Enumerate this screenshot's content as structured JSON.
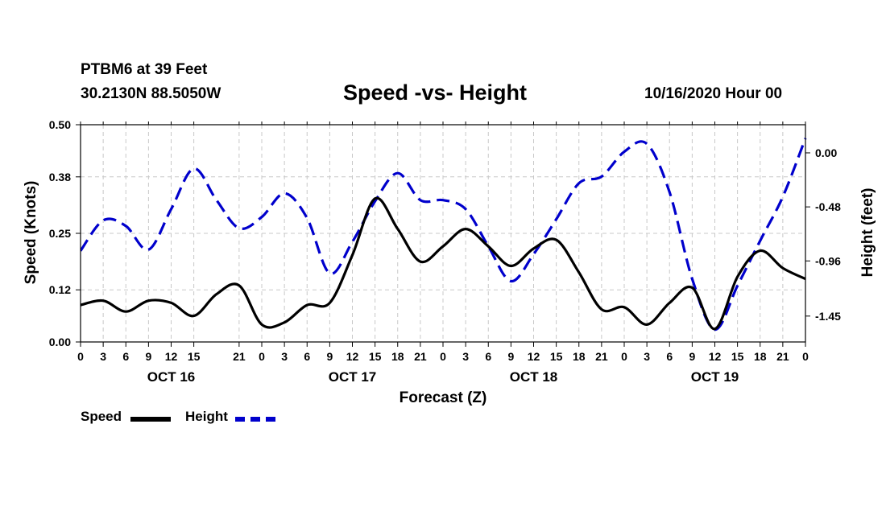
{
  "header": {
    "station": "PTBM6 at 39 Feet",
    "coords": "30.2130N 88.5050W",
    "title": "Speed -vs- Height",
    "run": "10/16/2020 Hour 00"
  },
  "chart_data": {
    "type": "line",
    "title": "Speed -vs- Height",
    "xlabel": "Forecast (Z)",
    "ylabel_left": "Speed (Knots)",
    "ylabel_right": "Height (feet)",
    "x_unit": "forecast hour",
    "xlim": [
      0,
      96
    ],
    "ylim_left": [
      0,
      0.5
    ],
    "ylim_right": [
      -1.68,
      0.25
    ],
    "yticks_left": [
      "0.50",
      "0.38",
      "0.25",
      "0.12",
      "0.00"
    ],
    "yticks_left_values": [
      0.5,
      0.38,
      0.25,
      0.12,
      0.0
    ],
    "yticks_right": [
      "0.00",
      "-0.48",
      "-0.96",
      "-1.45"
    ],
    "yticks_right_values": [
      0.0,
      -0.48,
      -0.96,
      -1.45
    ],
    "xtick_labels": [
      "0",
      "3",
      "6",
      "9",
      "12",
      "15",
      "21",
      "0",
      "3",
      "6",
      "9",
      "12",
      "15",
      "18",
      "21",
      "0",
      "3",
      "6",
      "9",
      "12",
      "15",
      "18",
      "21",
      "0",
      "3",
      "6",
      "9",
      "12",
      "15",
      "18",
      "21",
      "0"
    ],
    "xtick_hours": [
      0,
      3,
      6,
      9,
      12,
      15,
      21,
      24,
      27,
      30,
      33,
      36,
      39,
      42,
      45,
      48,
      51,
      54,
      57,
      60,
      63,
      66,
      69,
      72,
      75,
      78,
      81,
      84,
      87,
      90,
      93,
      96
    ],
    "day_labels": [
      "OCT 16",
      "OCT 17",
      "OCT 18",
      "OCT 19"
    ],
    "day_label_hours": [
      12,
      36,
      60,
      84
    ],
    "grid": true,
    "series": [
      {
        "name": "Speed",
        "axis": "left",
        "color": "#000000",
        "style": "solid",
        "x": [
          0,
          3,
          6,
          9,
          12,
          15,
          18,
          21,
          24,
          27,
          30,
          33,
          36,
          39,
          42,
          45,
          48,
          51,
          54,
          57,
          60,
          63,
          66,
          69,
          72,
          75,
          78,
          81,
          84,
          87,
          90,
          93,
          96
        ],
        "values": [
          0.085,
          0.095,
          0.07,
          0.095,
          0.09,
          0.06,
          0.11,
          0.13,
          0.04,
          0.045,
          0.085,
          0.09,
          0.2,
          0.33,
          0.26,
          0.185,
          0.22,
          0.26,
          0.22,
          0.175,
          0.215,
          0.235,
          0.16,
          0.075,
          0.08,
          0.04,
          0.09,
          0.125,
          0.03,
          0.15,
          0.21,
          0.17,
          0.145
        ]
      },
      {
        "name": "Height",
        "axis": "right",
        "color": "#0000cc",
        "style": "dashed",
        "x": [
          0,
          3,
          6,
          9,
          12,
          15,
          18,
          21,
          24,
          27,
          30,
          33,
          36,
          39,
          42,
          45,
          48,
          51,
          54,
          57,
          60,
          63,
          66,
          69,
          72,
          75,
          78,
          81,
          84,
          87,
          90,
          93,
          96
        ],
        "values": [
          -0.87,
          -0.6,
          -0.65,
          -0.86,
          -0.5,
          -0.14,
          -0.42,
          -0.67,
          -0.57,
          -0.36,
          -0.58,
          -1.07,
          -0.79,
          -0.43,
          -0.18,
          -0.42,
          -0.42,
          -0.5,
          -0.83,
          -1.14,
          -0.9,
          -0.59,
          -0.27,
          -0.21,
          0.01,
          0.08,
          -0.35,
          -1.12,
          -1.57,
          -1.18,
          -0.78,
          -0.39,
          0.13
        ]
      }
    ]
  },
  "legend": {
    "speed_label": "Speed",
    "height_label": "Height",
    "speed_color": "#000000",
    "height_color": "#0000cc"
  }
}
